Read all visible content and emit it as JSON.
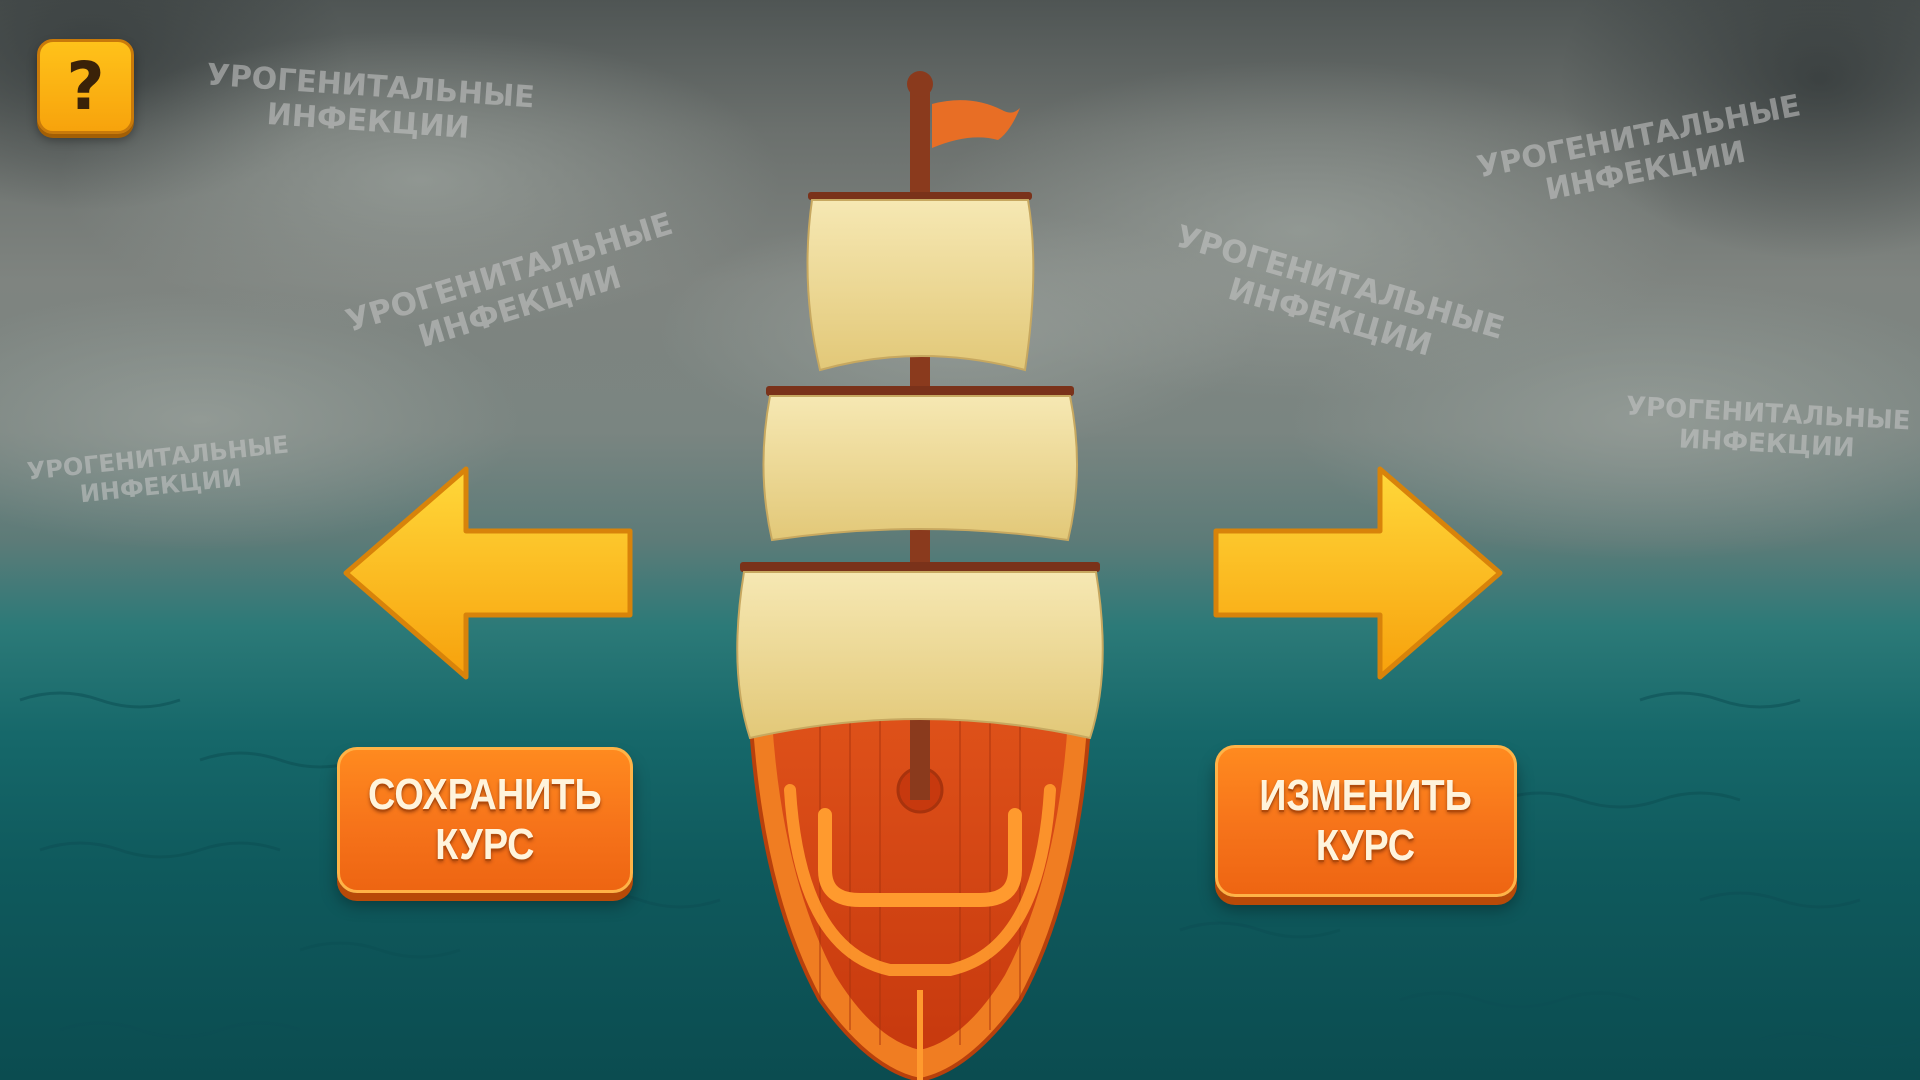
{
  "help": {
    "symbol": "?"
  },
  "buttons": {
    "save": {
      "line1": "СОХРАНИТЬ",
      "line2": "КУРС"
    },
    "change": {
      "line1": "ИЗМЕНИТЬ",
      "line2": "КУРС"
    }
  },
  "watermarks": [
    {
      "line1": "УРОГЕНИТАЛЬНЫЕ",
      "line2": "ИНФЕКЦИИ"
    },
    {
      "line1": "УРОГЕНИТАЛЬНЫЕ",
      "line2": "ИНФЕКЦИИ"
    },
    {
      "line1": "УРОГЕНИТАЛЬНЫЕ",
      "line2": "ИНФЕКЦИИ"
    },
    {
      "line1": "УРОГЕНИТАЛЬНЫЕ",
      "line2": "ИНФЕКЦИИ"
    },
    {
      "line1": "УРОГЕНИТАЛЬНЫЕ",
      "line2": "ИНФЕКЦИИ"
    },
    {
      "line1": "УРОГЕНИТАЛЬНЫЕ",
      "line2": "ИНФЕКЦИИ"
    }
  ],
  "icons": {
    "help": "question-mark-icon",
    "left": "arrow-left-icon",
    "right": "arrow-right-icon"
  },
  "colors": {
    "arrow": "#ffc21a",
    "button": "#f6731a",
    "sail": "#f3e3a6",
    "hull": "#e8531a",
    "sea": "#16686a",
    "sky": "#7f8480"
  }
}
